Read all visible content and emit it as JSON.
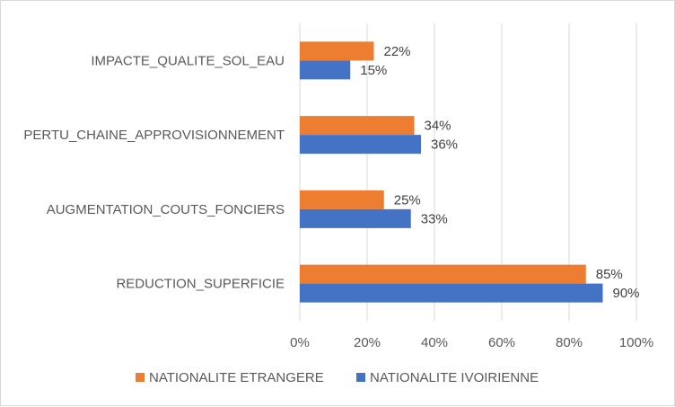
{
  "chart_data": {
    "type": "bar",
    "orientation": "horizontal",
    "categories": [
      "IMPACTE_QUALITE_SOL_EAU",
      "PERTU_CHAINE_APPROVISIONNEMENT",
      "AUGMENTATION_COUTS_FONCIERS",
      "REDUCTION_SUPERFICIE"
    ],
    "series": [
      {
        "name": "NATIONALITE ETRANGERE",
        "color": "#ed7d31",
        "values": [
          22,
          34,
          25,
          85
        ],
        "labels": [
          "22%",
          "34%",
          "25%",
          "85%"
        ]
      },
      {
        "name": "NATIONALITE IVOIRIENNE",
        "color": "#4472c4",
        "values": [
          15,
          36,
          33,
          90
        ],
        "labels": [
          "15%",
          "36%",
          "33%",
          "90%"
        ]
      }
    ],
    "xlim": [
      0,
      100
    ],
    "xticks": [
      0,
      20,
      40,
      60,
      80,
      100
    ],
    "xtick_labels": [
      "0%",
      "20%",
      "40%",
      "60%",
      "80%",
      "100%"
    ],
    "grid": "vertical",
    "grid_color": "#d9d9d9",
    "legend_position": "bottom"
  }
}
